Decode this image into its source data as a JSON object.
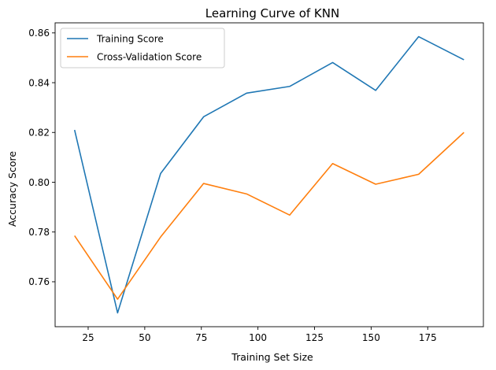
{
  "chart_data": {
    "type": "line",
    "title": "Learning Curve of KNN",
    "xlabel": "Training Set Size",
    "ylabel": "Accuracy Score",
    "x": [
      19,
      38,
      57,
      76,
      95,
      114,
      133,
      152,
      171,
      191
    ],
    "series": [
      {
        "name": "Training Score",
        "color": "#1f77b4",
        "values": [
          0.821,
          0.7475,
          0.8035,
          0.8263,
          0.8358,
          0.8385,
          0.8481,
          0.8369,
          0.8585,
          0.8492
        ]
      },
      {
        "name": "Cross-Validation Score",
        "color": "#ff7f0e",
        "values": [
          0.7785,
          0.753,
          0.778,
          0.7995,
          0.7953,
          0.7868,
          0.8075,
          0.7992,
          0.8032,
          0.82
        ]
      }
    ],
    "xlim": [
      10.4,
      199.6
    ],
    "ylim": [
      0.74195,
      0.86405
    ],
    "xticks": [
      25,
      50,
      75,
      100,
      125,
      150,
      175
    ],
    "xtick_labels": [
      "25",
      "50",
      "75",
      "100",
      "125",
      "150",
      "175"
    ],
    "yticks": [
      0.76,
      0.78,
      0.8,
      0.82,
      0.84,
      0.86
    ],
    "ytick_labels": [
      "0.76",
      "0.78",
      "0.80",
      "0.82",
      "0.84",
      "0.86"
    ],
    "grid": false,
    "legend_position": "upper-left"
  }
}
